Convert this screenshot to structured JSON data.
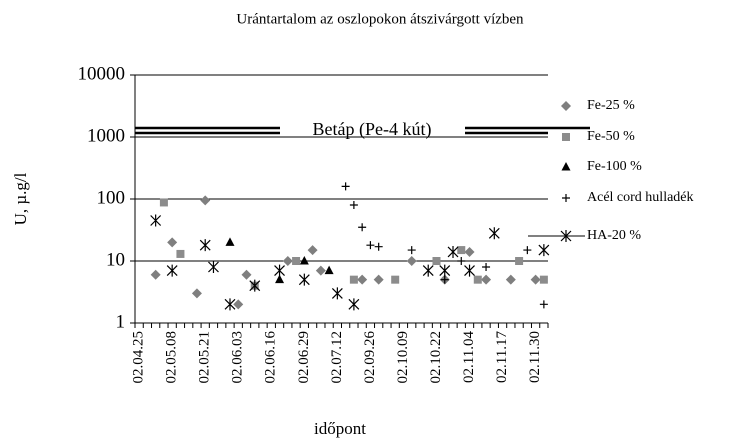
{
  "chart_data": {
    "type": "scatter",
    "title": "Urántartalom az oszlopokon átszivárgott vízben",
    "y_label": "U, µ.g/l",
    "x_label": "időpont",
    "annotation": "Betáp (Pe-4 kút)",
    "log_y": true,
    "grid": true,
    "legend": "right",
    "ylim": [
      1,
      10000
    ],
    "yticks": [
      1,
      10,
      100,
      1000,
      10000
    ],
    "categories": [
      "02.04.25",
      null,
      null,
      null,
      "02.05.08",
      null,
      null,
      null,
      "02.05.21",
      null,
      null,
      null,
      "02.06.03",
      null,
      null,
      null,
      "02.06.16",
      null,
      null,
      null,
      "02.06.29",
      null,
      null,
      null,
      "02.07.12",
      null,
      null,
      null,
      "02.09.26",
      null,
      null,
      null,
      "02.10.09",
      null,
      null,
      null,
      "02.10.22",
      null,
      null,
      null,
      "02.11.04",
      null,
      null,
      null,
      "02.11.17",
      null,
      null,
      null,
      "02.11.30",
      null
    ],
    "series": [
      {
        "name": "Fe-25 %",
        "color": "#7f7f7f",
        "marker": "diamond",
        "values": [
          null,
          null,
          6,
          null,
          20,
          null,
          null,
          3,
          95,
          null,
          null,
          null,
          2,
          6,
          null,
          null,
          null,
          null,
          10,
          null,
          null,
          15,
          7,
          null,
          null,
          null,
          null,
          5,
          null,
          5,
          null,
          null,
          null,
          10,
          null,
          null,
          null,
          5,
          null,
          null,
          14,
          null,
          5,
          null,
          null,
          5,
          null,
          null,
          5,
          null
        ]
      },
      {
        "name": "Fe-50 %",
        "color": "#8c8c8c",
        "marker": "square",
        "values": [
          null,
          null,
          null,
          88,
          null,
          13,
          null,
          null,
          null,
          null,
          null,
          null,
          null,
          null,
          4,
          null,
          null,
          null,
          null,
          10,
          null,
          null,
          null,
          null,
          null,
          null,
          5,
          null,
          null,
          null,
          null,
          5,
          null,
          null,
          null,
          null,
          10,
          null,
          null,
          15,
          null,
          5,
          null,
          null,
          null,
          null,
          10,
          null,
          null,
          5
        ]
      },
      {
        "name": "Fe-100 %",
        "color": "#000000",
        "marker": "triangle",
        "values": [
          null,
          null,
          null,
          null,
          null,
          null,
          null,
          null,
          null,
          null,
          null,
          20,
          null,
          null,
          null,
          null,
          null,
          5,
          null,
          null,
          10,
          null,
          null,
          7,
          null,
          null,
          null,
          null,
          null,
          null,
          null,
          null,
          null,
          null,
          null,
          null,
          null,
          null,
          null,
          null,
          null,
          null,
          null,
          null,
          null,
          null,
          null,
          null,
          null,
          null
        ]
      },
      {
        "name": "Acél cord hulladék",
        "color": "#000000",
        "marker": "plus",
        "values": [
          null,
          null,
          null,
          null,
          null,
          null,
          null,
          null,
          null,
          null,
          null,
          null,
          null,
          null,
          null,
          null,
          null,
          null,
          null,
          null,
          null,
          null,
          null,
          null,
          null,
          160,
          80,
          35,
          18,
          17,
          null,
          null,
          null,
          15,
          null,
          null,
          null,
          5,
          null,
          10,
          null,
          null,
          8,
          null,
          null,
          null,
          null,
          15,
          null,
          2
        ]
      },
      {
        "name": "HA-20 %",
        "color": "#000000",
        "marker": "asterisk",
        "values": [
          null,
          null,
          45,
          null,
          7,
          null,
          null,
          null,
          18,
          8,
          null,
          2,
          null,
          null,
          4,
          null,
          null,
          7,
          null,
          null,
          5,
          null,
          null,
          null,
          3,
          null,
          2,
          null,
          null,
          null,
          null,
          null,
          null,
          null,
          null,
          7,
          null,
          7,
          14,
          null,
          7,
          null,
          null,
          28,
          null,
          null,
          null,
          null,
          null,
          15
        ]
      }
    ]
  }
}
